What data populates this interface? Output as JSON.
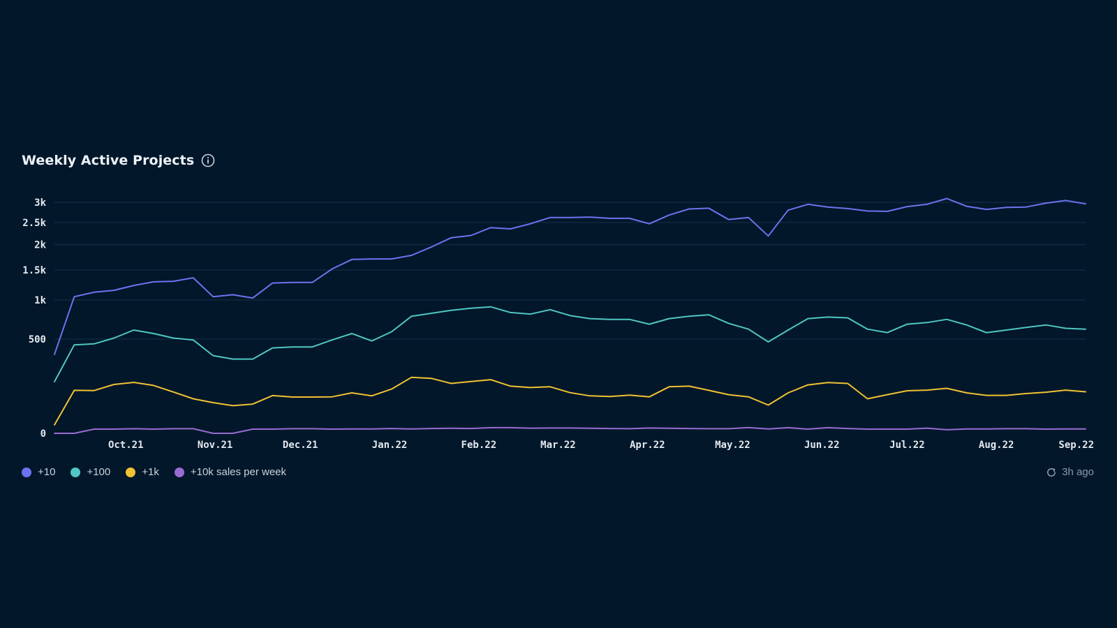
{
  "header": {
    "title": "Weekly Active Projects",
    "info_icon": "info-icon"
  },
  "status": {
    "updated": "3h ago",
    "icon": "refresh-icon"
  },
  "chart_data": {
    "type": "line",
    "title": "Weekly Active Projects",
    "y_scale": "square-root",
    "grid": true,
    "legend_placement": "bottom-left",
    "ylim": [
      0,
      3000
    ],
    "y_ticks": [
      0,
      500,
      1000,
      1500,
      2000,
      2500,
      3000
    ],
    "y_tick_labels": [
      "0",
      "500",
      "1k",
      "1.5k",
      "2k",
      "2.5k",
      "3k"
    ],
    "x_tick_labels": [
      "Oct.21",
      "Nov.21",
      "Dec.21",
      "Jan.22",
      "Feb.22",
      "Mar.22",
      "Apr.22",
      "May.22",
      "Jun.22",
      "Jul.22",
      "Aug.22",
      "Sep.22"
    ],
    "x_tick_weeks": [
      3.6,
      8.1,
      12.4,
      16.9,
      21.4,
      25.4,
      29.9,
      34.2,
      38.7,
      43.0,
      47.5,
      52.5
    ],
    "weeks": 53,
    "series": [
      {
        "name": "+10",
        "color": "#6b74f0",
        "values": [
          350,
          1050,
          1120,
          1150,
          1230,
          1290,
          1300,
          1360,
          1050,
          1080,
          1030,
          1270,
          1280,
          1280,
          1520,
          1700,
          1710,
          1710,
          1780,
          1950,
          2150,
          2200,
          2380,
          2350,
          2470,
          2620,
          2620,
          2630,
          2600,
          2600,
          2470,
          2680,
          2830,
          2850,
          2570,
          2620,
          2190,
          2800,
          2950,
          2880,
          2840,
          2780,
          2770,
          2890,
          2950,
          3100,
          2900,
          2820,
          2870,
          2880,
          2980,
          3050,
          2960
        ]
      },
      {
        "name": "+100",
        "color": "#4fc7c2",
        "values": [
          150,
          440,
          450,
          510,
          600,
          560,
          510,
          490,
          340,
          310,
          310,
          410,
          420,
          420,
          490,
          560,
          480,
          580,
          770,
          810,
          850,
          880,
          900,
          820,
          800,
          860,
          780,
          740,
          730,
          730,
          670,
          740,
          770,
          790,
          680,
          610,
          470,
          600,
          740,
          760,
          750,
          610,
          570,
          670,
          690,
          730,
          660,
          570,
          600,
          630,
          660,
          620,
          610
        ]
      },
      {
        "name": "+1k",
        "color": "#f1c232",
        "values": [
          4,
          104,
          103,
          134,
          146,
          129,
          96,
          67,
          53,
          43,
          48,
          80,
          74,
          74,
          75,
          92,
          79,
          110,
          176,
          170,
          140,
          151,
          162,
          125,
          118,
          122,
          93,
          79,
          76,
          82,
          75,
          122,
          125,
          104,
          84,
          75,
          45,
          92,
          132,
          145,
          140,
          67,
          84,
          102,
          105,
          114,
          92,
          81,
          81,
          89,
          95,
          105,
          97
        ]
      },
      {
        "name": "+10k sales per week",
        "color": "#9a6cd1",
        "values": [
          0,
          0,
          1,
          1,
          1.2,
          1,
          1.2,
          1.2,
          0,
          0,
          1,
          1,
          1.2,
          1.2,
          1,
          1.1,
          1.1,
          1.3,
          1.1,
          1.3,
          1.4,
          1.3,
          1.8,
          1.8,
          1.5,
          1.6,
          1.6,
          1.4,
          1.3,
          1.2,
          1.6,
          1.4,
          1.3,
          1.2,
          1.2,
          1.9,
          1.1,
          1.8,
          1,
          1.8,
          1.3,
          1,
          1,
          1,
          1.5,
          0.7,
          1.1,
          1.1,
          1.2,
          1.2,
          1,
          1.1,
          1.1
        ]
      }
    ]
  }
}
